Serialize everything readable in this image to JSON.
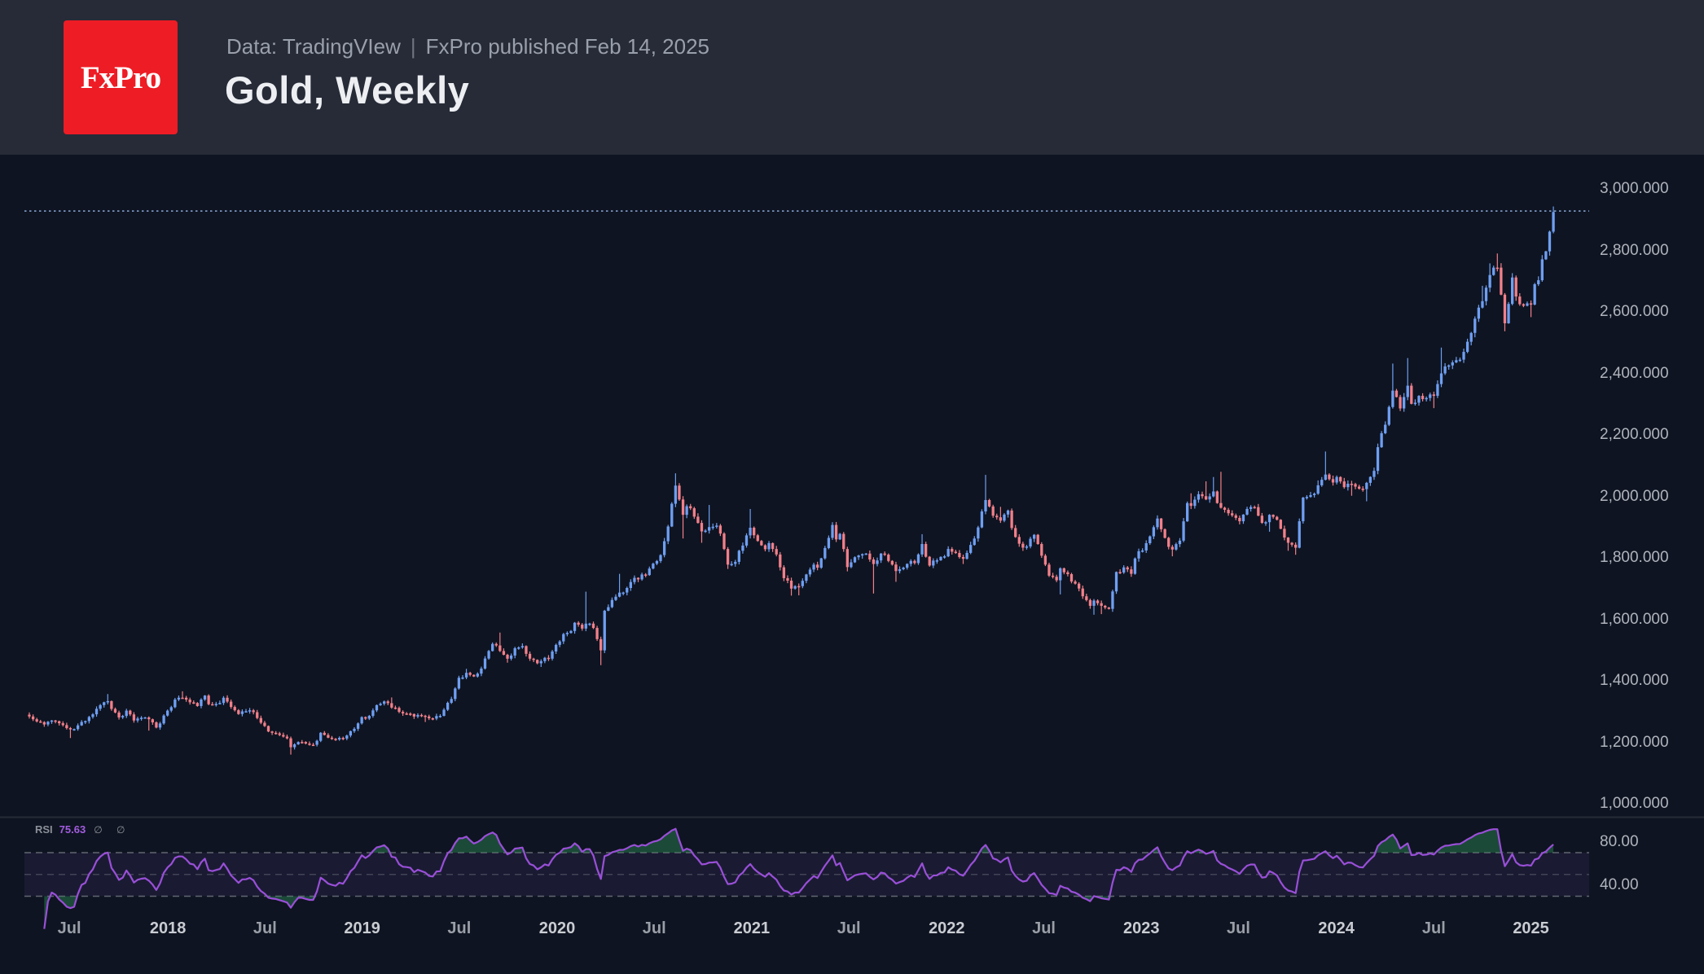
{
  "header": {
    "logo_text": "FxPro",
    "source_line": "Data: TradingVIew",
    "divider": "|",
    "published_line": "FxPro published Feb 14, 2025",
    "title": "Gold, Weekly"
  },
  "colors": {
    "header_bg": "#262b37",
    "chart_bg": "#0e1421",
    "logo_red": "#ee1c25",
    "up": "#6f9ff2",
    "down": "#f2808a",
    "wick_up": "#6f9ff2",
    "wick_down": "#f2808a",
    "price_line": "#8ba9da",
    "separator": "#262b37",
    "rsi_line": "#9a4fd8",
    "rsi_band_fill": "rgba(136,98,220,0.10)",
    "rsi_level_dash": "#6b6f79",
    "rsi_overbought_fill": "rgba(44,140,84,0.45)",
    "axis_text": "#b0b4bd",
    "time_text": "#999ea7",
    "time_text_major": "#c9ccd2"
  },
  "chart_data": {
    "type": "candlestick",
    "title": "Gold, Weekly",
    "symbol": "Gold",
    "timeframe": "Weekly",
    "legend_note": "blue = up week, salmon = down week",
    "grid": "off",
    "price_axis": {
      "side": "right",
      "tick_labels": [
        "3,000.000",
        "2,800.000",
        "2,600.000",
        "2,400.000",
        "2,200.000",
        "2,000.000",
        "1,800.000",
        "1,600.000",
        "1,400.000",
        "1,200.000",
        "1,000.000"
      ],
      "tick_values": [
        3000,
        2800,
        2600,
        2400,
        2200,
        2000,
        1800,
        1600,
        1400,
        1200,
        1000
      ],
      "range_shown": [
        980,
        3060
      ]
    },
    "time_axis": {
      "ticks": [
        {
          "label": "Jul",
          "week": 10.7,
          "major": false
        },
        {
          "label": "2018",
          "week": 37.1,
          "major": true
        },
        {
          "label": "Jul",
          "week": 63.1,
          "major": false
        },
        {
          "label": "2019",
          "week": 89.1,
          "major": true
        },
        {
          "label": "Jul",
          "week": 115.1,
          "major": false
        },
        {
          "label": "2020",
          "week": 141.3,
          "major": true
        },
        {
          "label": "Jul",
          "week": 167.3,
          "major": false
        },
        {
          "label": "2021",
          "week": 193.4,
          "major": true
        },
        {
          "label": "Jul",
          "week": 219.4,
          "major": false
        },
        {
          "label": "2022",
          "week": 245.6,
          "major": true
        },
        {
          "label": "Jul",
          "week": 271.6,
          "major": false
        },
        {
          "label": "2023",
          "week": 297.7,
          "major": true
        },
        {
          "label": "Jul",
          "week": 323.7,
          "major": false
        },
        {
          "label": "2024",
          "week": 349.9,
          "major": true
        },
        {
          "label": "Jul",
          "week": 376.0,
          "major": false
        },
        {
          "label": "2025",
          "week": 402.0,
          "major": true
        }
      ]
    },
    "price_line_value": 2928,
    "weeks_total": 409,
    "anchors_format": "[week_index, close, high_wick_or_0, low_wick_or_0] — key weekly points read off the chart (USD/oz)",
    "anchors": [
      [
        0,
        1284,
        0,
        0
      ],
      [
        1,
        1275,
        0,
        0
      ],
      [
        2,
        1268,
        0,
        0
      ],
      [
        4,
        1258,
        0,
        0
      ],
      [
        6,
        1271,
        0,
        0
      ],
      [
        8,
        1262,
        0,
        0
      ],
      [
        9,
        1256,
        0,
        0
      ],
      [
        11,
        1242,
        0,
        1214
      ],
      [
        13,
        1255,
        0,
        0
      ],
      [
        15,
        1269,
        0,
        0
      ],
      [
        17,
        1291,
        0,
        0
      ],
      [
        19,
        1321,
        0,
        0
      ],
      [
        21,
        1334,
        1357,
        0
      ],
      [
        23,
        1297,
        0,
        0
      ],
      [
        24,
        1281,
        0,
        0
      ],
      [
        26,
        1303,
        0,
        0
      ],
      [
        28,
        1271,
        0,
        0
      ],
      [
        30,
        1280,
        0,
        0
      ],
      [
        32,
        1275,
        0,
        1238
      ],
      [
        34,
        1248,
        0,
        0
      ],
      [
        36,
        1287,
        0,
        0
      ],
      [
        37,
        1303,
        0,
        0
      ],
      [
        39,
        1339,
        0,
        0
      ],
      [
        41,
        1345,
        1366,
        0
      ],
      [
        43,
        1330,
        0,
        0
      ],
      [
        45,
        1318,
        0,
        0
      ],
      [
        47,
        1352,
        0,
        0
      ],
      [
        48,
        1324,
        0,
        0
      ],
      [
        50,
        1325,
        0,
        0
      ],
      [
        52,
        1345,
        0,
        0
      ],
      [
        54,
        1315,
        0,
        0
      ],
      [
        56,
        1292,
        0,
        0
      ],
      [
        58,
        1301,
        0,
        0
      ],
      [
        60,
        1298,
        0,
        0
      ],
      [
        61,
        1279,
        0,
        0
      ],
      [
        63,
        1253,
        0,
        0
      ],
      [
        65,
        1231,
        0,
        0
      ],
      [
        67,
        1224,
        0,
        0
      ],
      [
        69,
        1213,
        0,
        0
      ],
      [
        70,
        1184,
        0,
        1160
      ],
      [
        72,
        1201,
        0,
        0
      ],
      [
        74,
        1196,
        0,
        0
      ],
      [
        76,
        1192,
        0,
        0
      ],
      [
        78,
        1231,
        0,
        0
      ],
      [
        80,
        1215,
        0,
        0
      ],
      [
        82,
        1209,
        0,
        0
      ],
      [
        84,
        1212,
        0,
        0
      ],
      [
        85,
        1222,
        0,
        0
      ],
      [
        87,
        1244,
        0,
        0
      ],
      [
        89,
        1282,
        0,
        0
      ],
      [
        91,
        1286,
        0,
        0
      ],
      [
        93,
        1321,
        0,
        0
      ],
      [
        95,
        1333,
        0,
        0
      ],
      [
        97,
        1313,
        1346,
        0
      ],
      [
        99,
        1299,
        0,
        0
      ],
      [
        102,
        1292,
        0,
        0
      ],
      [
        104,
        1289,
        0,
        0
      ],
      [
        106,
        1284,
        0,
        1266
      ],
      [
        108,
        1277,
        0,
        0
      ],
      [
        110,
        1286,
        0,
        0
      ],
      [
        111,
        1306,
        0,
        0
      ],
      [
        113,
        1341,
        0,
        0
      ],
      [
        115,
        1410,
        0,
        0
      ],
      [
        117,
        1426,
        1439,
        0
      ],
      [
        119,
        1414,
        0,
        0
      ],
      [
        121,
        1440,
        0,
        0
      ],
      [
        123,
        1497,
        0,
        0
      ],
      [
        124,
        1520,
        0,
        0
      ],
      [
        126,
        1497,
        1557,
        0
      ],
      [
        128,
        1472,
        0,
        1459
      ],
      [
        130,
        1506,
        0,
        0
      ],
      [
        132,
        1513,
        0,
        0
      ],
      [
        134,
        1472,
        0,
        0
      ],
      [
        136,
        1457,
        0,
        0
      ],
      [
        137,
        1464,
        0,
        1445
      ],
      [
        139,
        1472,
        0,
        0
      ],
      [
        141,
        1517,
        0,
        0
      ],
      [
        143,
        1552,
        0,
        0
      ],
      [
        145,
        1562,
        0,
        0
      ],
      [
        146,
        1589,
        0,
        0
      ],
      [
        148,
        1570,
        0,
        0
      ],
      [
        149,
        1586,
        1690,
        0
      ],
      [
        151,
        1572,
        0,
        0
      ],
      [
        153,
        1499,
        0,
        1451
      ],
      [
        154,
        1628,
        0,
        0
      ],
      [
        156,
        1663,
        0,
        0
      ],
      [
        158,
        1687,
        1748,
        0
      ],
      [
        160,
        1702,
        0,
        0
      ],
      [
        162,
        1735,
        0,
        0
      ],
      [
        163,
        1730,
        0,
        0
      ],
      [
        165,
        1744,
        0,
        0
      ],
      [
        167,
        1781,
        0,
        0
      ],
      [
        169,
        1809,
        0,
        0
      ],
      [
        171,
        1902,
        0,
        0
      ],
      [
        172,
        1976,
        0,
        0
      ],
      [
        173,
        2035,
        2075,
        0
      ],
      [
        175,
        1940,
        0,
        1863
      ],
      [
        176,
        1968,
        0,
        0
      ],
      [
        178,
        1934,
        0,
        0
      ],
      [
        180,
        1886,
        0,
        1849
      ],
      [
        182,
        1900,
        1972,
        0
      ],
      [
        184,
        1905,
        0,
        0
      ],
      [
        185,
        1879,
        0,
        0
      ],
      [
        187,
        1778,
        0,
        1764
      ],
      [
        189,
        1787,
        0,
        0
      ],
      [
        191,
        1840,
        0,
        0
      ],
      [
        193,
        1898,
        1959,
        0
      ],
      [
        195,
        1855,
        0,
        0
      ],
      [
        197,
        1828,
        0,
        0
      ],
      [
        198,
        1848,
        0,
        0
      ],
      [
        200,
        1811,
        0,
        0
      ],
      [
        202,
        1734,
        0,
        0
      ],
      [
        204,
        1700,
        0,
        1677
      ],
      [
        206,
        1708,
        0,
        1678
      ],
      [
        208,
        1746,
        0,
        0
      ],
      [
        210,
        1778,
        0,
        0
      ],
      [
        211,
        1768,
        0,
        0
      ],
      [
        213,
        1832,
        0,
        0
      ],
      [
        215,
        1907,
        1916,
        0
      ],
      [
        216,
        1860,
        0,
        0
      ],
      [
        217,
        1878,
        0,
        0
      ],
      [
        219,
        1770,
        0,
        1756
      ],
      [
        221,
        1802,
        0,
        0
      ],
      [
        223,
        1812,
        0,
        0
      ],
      [
        224,
        1814,
        0,
        0
      ],
      [
        226,
        1780,
        0,
        1684
      ],
      [
        228,
        1814,
        0,
        0
      ],
      [
        230,
        1790,
        0,
        0
      ],
      [
        232,
        1757,
        0,
        1722
      ],
      [
        234,
        1768,
        0,
        0
      ],
      [
        236,
        1790,
        0,
        0
      ],
      [
        237,
        1783,
        0,
        0
      ],
      [
        239,
        1845,
        1877,
        0
      ],
      [
        241,
        1775,
        0,
        0
      ],
      [
        243,
        1792,
        0,
        0
      ],
      [
        245,
        1805,
        0,
        0
      ],
      [
        246,
        1829,
        0,
        0
      ],
      [
        248,
        1816,
        0,
        0
      ],
      [
        250,
        1797,
        0,
        1780
      ],
      [
        252,
        1842,
        0,
        0
      ],
      [
        254,
        1899,
        0,
        0
      ],
      [
        256,
        1988,
        2070,
        0
      ],
      [
        258,
        1937,
        0,
        0
      ],
      [
        260,
        1921,
        1966,
        0
      ],
      [
        262,
        1954,
        0,
        0
      ],
      [
        263,
        1897,
        0,
        0
      ],
      [
        265,
        1846,
        0,
        0
      ],
      [
        267,
        1837,
        0,
        0
      ],
      [
        269,
        1875,
        0,
        0
      ],
      [
        271,
        1807,
        0,
        0
      ],
      [
        273,
        1742,
        0,
        0
      ],
      [
        275,
        1727,
        0,
        0
      ],
      [
        276,
        1766,
        0,
        1681
      ],
      [
        278,
        1747,
        0,
        0
      ],
      [
        280,
        1716,
        0,
        0
      ],
      [
        282,
        1675,
        0,
        0
      ],
      [
        284,
        1644,
        0,
        0
      ],
      [
        285,
        1661,
        0,
        1615
      ],
      [
        287,
        1644,
        0,
        1617
      ],
      [
        289,
        1634,
        0,
        0
      ],
      [
        291,
        1754,
        0,
        0
      ],
      [
        293,
        1769,
        0,
        0
      ],
      [
        295,
        1748,
        0,
        0
      ],
      [
        296,
        1798,
        0,
        0
      ],
      [
        298,
        1824,
        0,
        0
      ],
      [
        300,
        1870,
        0,
        0
      ],
      [
        302,
        1928,
        0,
        0
      ],
      [
        304,
        1865,
        0,
        0
      ],
      [
        306,
        1827,
        0,
        1805
      ],
      [
        308,
        1856,
        0,
        0
      ],
      [
        310,
        1978,
        0,
        0
      ],
      [
        311,
        1969,
        2010,
        0
      ],
      [
        313,
        2007,
        0,
        0
      ],
      [
        315,
        1990,
        2049,
        0
      ],
      [
        317,
        2016,
        2063,
        0
      ],
      [
        319,
        1963,
        2080,
        0
      ],
      [
        321,
        1945,
        0,
        0
      ],
      [
        323,
        1930,
        0,
        0
      ],
      [
        324,
        1919,
        0,
        0
      ],
      [
        326,
        1959,
        0,
        0
      ],
      [
        328,
        1965,
        0,
        0
      ],
      [
        330,
        1914,
        0,
        0
      ],
      [
        332,
        1940,
        0,
        1885
      ],
      [
        334,
        1924,
        0,
        0
      ],
      [
        336,
        1866,
        0,
        0
      ],
      [
        337,
        1849,
        0,
        1823
      ],
      [
        339,
        1833,
        0,
        1810
      ],
      [
        341,
        1996,
        0,
        0
      ],
      [
        343,
        2004,
        0,
        0
      ],
      [
        345,
        2036,
        2052,
        0
      ],
      [
        347,
        2071,
        2146,
        0
      ],
      [
        349,
        2045,
        0,
        0
      ],
      [
        350,
        2063,
        0,
        0
      ],
      [
        352,
        2030,
        0,
        0
      ],
      [
        354,
        2040,
        0,
        2002
      ],
      [
        356,
        2025,
        0,
        0
      ],
      [
        358,
        2044,
        0,
        1984
      ],
      [
        360,
        2083,
        0,
        0
      ],
      [
        361,
        2160,
        0,
        0
      ],
      [
        363,
        2233,
        0,
        0
      ],
      [
        365,
        2344,
        2432,
        0
      ],
      [
        367,
        2286,
        0,
        0
      ],
      [
        369,
        2360,
        2450,
        0
      ],
      [
        370,
        2301,
        0,
        0
      ],
      [
        372,
        2327,
        0,
        0
      ],
      [
        374,
        2320,
        0,
        0
      ],
      [
        376,
        2327,
        0,
        2287
      ],
      [
        378,
        2400,
        2484,
        0
      ],
      [
        380,
        2426,
        0,
        0
      ],
      [
        382,
        2443,
        0,
        0
      ],
      [
        384,
        2470,
        0,
        0
      ],
      [
        385,
        2503,
        0,
        0
      ],
      [
        387,
        2578,
        0,
        0
      ],
      [
        389,
        2635,
        2685,
        0
      ],
      [
        391,
        2720,
        2758,
        0
      ],
      [
        393,
        2744,
        2790,
        0
      ],
      [
        395,
        2563,
        0,
        2537
      ],
      [
        397,
        2712,
        2726,
        0
      ],
      [
        398,
        2650,
        0,
        0
      ],
      [
        400,
        2620,
        0,
        0
      ],
      [
        402,
        2624,
        0,
        2583
      ],
      [
        403,
        2690,
        0,
        0
      ],
      [
        404,
        2703,
        0,
        0
      ],
      [
        405,
        2771,
        0,
        0
      ],
      [
        406,
        2797,
        0,
        0
      ],
      [
        407,
        2861,
        0,
        0
      ],
      [
        408,
        2925,
        2943,
        0
      ]
    ],
    "rsi": {
      "label": "RSI",
      "value": "75.63",
      "muted_glyphs": "∅ ∅",
      "last_value": 75.63,
      "upper_level": 70,
      "middle_level": 50,
      "lower_level": 30,
      "axis_ticks": [
        {
          "label": "80.00",
          "value": 80
        },
        {
          "label": "40.00",
          "value": 40
        }
      ]
    }
  }
}
